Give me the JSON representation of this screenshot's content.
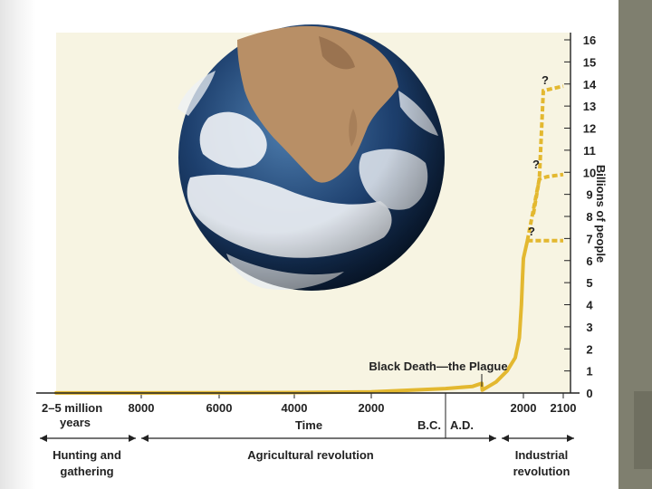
{
  "colors": {
    "plot_background": "#f7f4e2",
    "curve": "#e3b830",
    "axis": "#222222",
    "side_bar": "#7f7f6f"
  },
  "chart_data": {
    "type": "line",
    "title": "",
    "xlabel": "Time",
    "ylabel": "Billions of people",
    "ylim": [
      0,
      16
    ],
    "y_ticks": [
      "0",
      "1",
      "2",
      "3",
      "4",
      "5",
      "6",
      "7",
      "8",
      "9",
      "10",
      "11",
      "12",
      "13",
      "14",
      "15",
      "16"
    ],
    "x_tick_labels": [
      {
        "label": "8000",
        "value": -8000
      },
      {
        "label": "6000",
        "value": -6000
      },
      {
        "label": "4000",
        "value": -4000
      },
      {
        "label": "2000",
        "value": -2000
      },
      {
        "label": "2000",
        "value": 2000
      },
      {
        "label": "2100",
        "value": 2100
      }
    ],
    "x_start_label": "2–5 million years",
    "era_labels": [
      "B.C.",
      "A.D."
    ],
    "series": [
      {
        "x": [
          -8000,
          -6000,
          -4000,
          -2000,
          0,
          1000,
          1340,
          1350,
          1600,
          1800,
          1900,
          1950,
          1975,
          1990,
          2000,
          2010
        ],
        "y": [
          0.005,
          0.01,
          0.02,
          0.05,
          0.2,
          0.3,
          0.44,
          0.13,
          0.5,
          1.0,
          1.6,
          2.5,
          4.0,
          5.3,
          6.1,
          6.9
        ]
      }
    ],
    "projections": [
      {
        "label": "?",
        "x": [
          2010,
          2040,
          2050,
          2100
        ],
        "y": [
          6.9,
          9.7,
          13.7,
          13.9
        ]
      },
      {
        "label": "?",
        "x": [
          2025,
          2040,
          2060,
          2100
        ],
        "y": [
          8.1,
          9.7,
          9.8,
          9.9
        ]
      },
      {
        "label": "?",
        "x": [
          2010,
          2040,
          2100
        ],
        "y": [
          6.9,
          6.9,
          6.9
        ]
      }
    ],
    "annotation": "Black Death—the Plague",
    "periods": [
      {
        "label": "Hunting and gathering"
      },
      {
        "label": "Agricultural revolution"
      },
      {
        "label": "Industrial revolution"
      }
    ]
  }
}
